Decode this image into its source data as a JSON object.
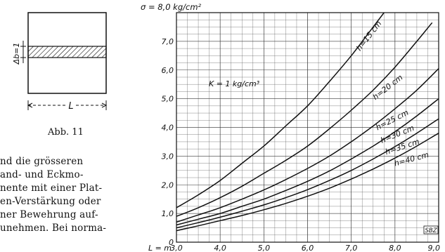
{
  "figure_small": {
    "delta_label": "Δb=1",
    "length_label": "L",
    "caption": "Abb. 11"
  },
  "body_text": {
    "lines": [
      "nd   die   grösseren",
      "and-  und  Eckmo-",
      "nente mit einer Plat-",
      "en-Verstärkung oder",
      "ner Bewehrung auf-",
      "unehmen. Bei norma-"
    ]
  },
  "chart_data": {
    "type": "line",
    "title": "σ = 8,0 kg/cm²",
    "ylabel_prefix": "σ =",
    "ylabel_value": "8,0",
    "ylabel_unit": "kg/cm²",
    "xlabel_prefix": "L = m",
    "x_ticks": [
      "3,0",
      "4,0",
      "5,0",
      "6,0",
      "7,0",
      "8,0",
      "9,0"
    ],
    "y_ticks": [
      "0",
      "1,0",
      "2,0",
      "3,0",
      "4,0",
      "5,0",
      "6,0",
      "7,0"
    ],
    "xlim": [
      3,
      9
    ],
    "ylim": [
      0,
      8
    ],
    "grid": true,
    "annotation": "K = 1 kg/cm³",
    "stamp": "SBZ",
    "series": [
      {
        "name": "h=15 cm",
        "x": [
          3.0,
          3.5,
          4.0,
          4.5,
          5.0,
          5.5,
          6.0,
          6.5,
          7.0,
          7.5,
          7.75
        ],
        "y": [
          1.2,
          1.65,
          2.15,
          2.75,
          3.35,
          4.05,
          4.75,
          5.6,
          6.5,
          7.5,
          8.0
        ]
      },
      {
        "name": "h=20 cm",
        "x": [
          3.0,
          3.5,
          4.0,
          4.5,
          5.0,
          5.5,
          6.0,
          6.5,
          7.0,
          7.5,
          8.0,
          8.5,
          8.85
        ],
        "y": [
          0.9,
          1.2,
          1.55,
          1.95,
          2.4,
          2.85,
          3.35,
          3.95,
          4.6,
          5.3,
          6.1,
          7.0,
          7.65
        ]
      },
      {
        "name": "h=25 cm",
        "x": [
          3.0,
          3.5,
          4.0,
          4.5,
          5.0,
          5.5,
          6.0,
          6.5,
          7.0,
          7.5,
          8.0,
          8.5,
          9.0
        ],
        "y": [
          0.7,
          0.95,
          1.2,
          1.5,
          1.82,
          2.18,
          2.57,
          3.0,
          3.5,
          4.05,
          4.65,
          5.3,
          6.05
        ]
      },
      {
        "name": "h=30 cm",
        "x": [
          3.0,
          3.5,
          4.0,
          4.5,
          5.0,
          5.5,
          6.0,
          6.5,
          7.0,
          7.5,
          8.0,
          8.5,
          9.0
        ],
        "y": [
          0.6,
          0.8,
          1.0,
          1.25,
          1.5,
          1.8,
          2.12,
          2.48,
          2.9,
          3.35,
          3.85,
          4.4,
          5.0
        ]
      },
      {
        "name": "h=35 cm",
        "x": [
          3.0,
          3.5,
          4.0,
          4.5,
          5.0,
          5.5,
          6.0,
          6.5,
          7.0,
          7.5,
          8.0,
          8.5,
          9.0
        ],
        "y": [
          0.5,
          0.68,
          0.87,
          1.08,
          1.3,
          1.55,
          1.83,
          2.15,
          2.5,
          2.9,
          3.33,
          3.8,
          4.3
        ]
      },
      {
        "name": "h=40 cm",
        "x": [
          3.0,
          3.5,
          4.0,
          4.5,
          5.0,
          5.5,
          6.0,
          6.5,
          7.0,
          7.5,
          8.0,
          8.5,
          9.0
        ],
        "y": [
          0.4,
          0.57,
          0.75,
          0.93,
          1.13,
          1.35,
          1.6,
          1.88,
          2.2,
          2.55,
          2.93,
          3.35,
          3.8
        ]
      }
    ]
  }
}
